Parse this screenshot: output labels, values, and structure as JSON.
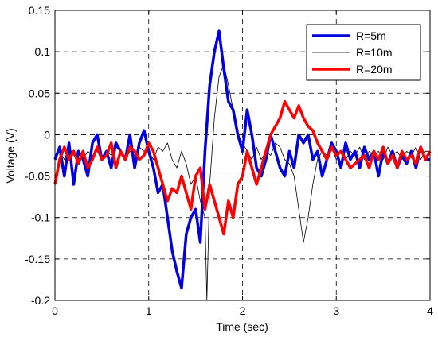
{
  "chart_data": {
    "type": "line",
    "xlabel": "Time (sec)",
    "ylabel": "Voltage (V)",
    "xlim": [
      0,
      4
    ],
    "ylim": [
      -0.2,
      0.15
    ],
    "x_ticks": [
      "0",
      "1",
      "2",
      "3",
      "4"
    ],
    "y_ticks": [
      "-0.2",
      "-0.15",
      "-0.1",
      "-0.05",
      "0",
      "0.05",
      "0.1",
      "0.15"
    ],
    "grid": true,
    "legend_position": "top-right",
    "series": [
      {
        "name": "R=5m",
        "color": "#0000e0",
        "x": [
          0,
          0.05,
          0.1,
          0.15,
          0.2,
          0.25,
          0.3,
          0.35,
          0.4,
          0.45,
          0.5,
          0.55,
          0.6,
          0.65,
          0.7,
          0.75,
          0.8,
          0.85,
          0.9,
          0.95,
          1.0,
          1.05,
          1.1,
          1.15,
          1.2,
          1.25,
          1.3,
          1.35,
          1.4,
          1.45,
          1.5,
          1.55,
          1.6,
          1.65,
          1.7,
          1.75,
          1.8,
          1.85,
          1.9,
          1.95,
          2.0,
          2.05,
          2.1,
          2.15,
          2.2,
          2.25,
          2.3,
          2.35,
          2.4,
          2.45,
          2.5,
          2.55,
          2.6,
          2.65,
          2.7,
          2.75,
          2.8,
          2.85,
          2.9,
          2.95,
          3.0,
          3.05,
          3.1,
          3.15,
          3.2,
          3.25,
          3.3,
          3.35,
          3.4,
          3.45,
          3.5,
          3.55,
          3.6,
          3.65,
          3.7,
          3.75,
          3.8,
          3.85,
          3.9,
          3.95,
          4.0
        ],
        "values": [
          -0.03,
          -0.015,
          -0.05,
          -0.01,
          -0.06,
          -0.02,
          -0.03,
          -0.05,
          -0.01,
          0.0,
          -0.03,
          -0.02,
          -0.04,
          -0.01,
          -0.02,
          -0.03,
          0.0,
          -0.04,
          -0.01,
          0.005,
          -0.02,
          -0.04,
          -0.07,
          -0.06,
          -0.1,
          -0.14,
          -0.165,
          -0.185,
          -0.12,
          -0.1,
          -0.09,
          -0.13,
          -0.02,
          0.06,
          0.1,
          0.125,
          0.08,
          0.04,
          0.03,
          0.0,
          -0.02,
          0.03,
          0.0,
          -0.04,
          -0.05,
          -0.03,
          0.0,
          -0.02,
          -0.04,
          -0.05,
          -0.02,
          -0.04,
          0.0,
          -0.01,
          0.0,
          -0.03,
          -0.02,
          -0.05,
          -0.03,
          -0.01,
          -0.02,
          -0.04,
          -0.01,
          -0.03,
          -0.02,
          -0.04,
          -0.015,
          -0.03,
          -0.02,
          -0.05,
          -0.02,
          -0.035,
          -0.02,
          -0.04,
          -0.025,
          -0.035,
          -0.02,
          -0.04,
          -0.015,
          -0.03,
          -0.03
        ]
      },
      {
        "name": "R=10m",
        "color": "#000000",
        "x": [
          0,
          0.05,
          0.1,
          0.15,
          0.2,
          0.25,
          0.3,
          0.35,
          0.4,
          0.45,
          0.5,
          0.55,
          0.6,
          0.65,
          0.7,
          0.75,
          0.8,
          0.85,
          0.9,
          0.95,
          1.0,
          1.05,
          1.1,
          1.15,
          1.2,
          1.25,
          1.3,
          1.35,
          1.4,
          1.45,
          1.5,
          1.55,
          1.6,
          1.62,
          1.65,
          1.7,
          1.75,
          1.8,
          1.85,
          1.9,
          1.95,
          2.0,
          2.05,
          2.1,
          2.15,
          2.2,
          2.25,
          2.3,
          2.35,
          2.4,
          2.45,
          2.5,
          2.55,
          2.6,
          2.65,
          2.7,
          2.75,
          2.8,
          2.85,
          2.9,
          2.95,
          3.0,
          3.05,
          3.1,
          3.15,
          3.2,
          3.25,
          3.3,
          3.35,
          3.4,
          3.45,
          3.5,
          3.55,
          3.6,
          3.65,
          3.7,
          3.75,
          3.8,
          3.85,
          3.9,
          3.95,
          4.0
        ],
        "values": [
          -0.03,
          -0.02,
          -0.03,
          -0.015,
          -0.025,
          -0.02,
          -0.03,
          -0.02,
          -0.025,
          -0.02,
          -0.03,
          -0.02,
          -0.025,
          -0.015,
          -0.02,
          -0.03,
          -0.02,
          -0.025,
          -0.015,
          -0.02,
          -0.02,
          -0.03,
          -0.015,
          -0.02,
          -0.01,
          -0.03,
          -0.04,
          -0.02,
          -0.035,
          -0.06,
          -0.05,
          -0.08,
          -0.1,
          -0.2,
          -0.06,
          0.02,
          0.07,
          0.085,
          0.06,
          0.03,
          0.0,
          -0.01,
          -0.02,
          -0.03,
          -0.015,
          -0.03,
          -0.02,
          -0.025,
          -0.01,
          -0.015,
          -0.03,
          -0.035,
          -0.05,
          -0.09,
          -0.13,
          -0.1,
          -0.06,
          -0.03,
          -0.02,
          -0.025,
          -0.015,
          -0.03,
          -0.02,
          -0.03,
          -0.02,
          -0.025,
          -0.015,
          -0.03,
          -0.02,
          -0.025,
          -0.02,
          -0.03,
          -0.015,
          -0.025,
          -0.02,
          -0.03,
          -0.02,
          -0.025,
          -0.015,
          -0.03,
          -0.02,
          -0.02
        ]
      },
      {
        "name": "R=20m",
        "color": "#ff0000",
        "x": [
          0,
          0.05,
          0.1,
          0.15,
          0.2,
          0.25,
          0.3,
          0.35,
          0.4,
          0.45,
          0.5,
          0.55,
          0.6,
          0.65,
          0.7,
          0.75,
          0.8,
          0.85,
          0.9,
          0.95,
          1.0,
          1.05,
          1.1,
          1.15,
          1.2,
          1.25,
          1.3,
          1.35,
          1.4,
          1.45,
          1.5,
          1.55,
          1.6,
          1.65,
          1.7,
          1.75,
          1.8,
          1.85,
          1.9,
          1.95,
          2.0,
          2.05,
          2.1,
          2.15,
          2.2,
          2.25,
          2.3,
          2.35,
          2.4,
          2.45,
          2.5,
          2.55,
          2.6,
          2.65,
          2.7,
          2.75,
          2.8,
          2.85,
          2.9,
          2.95,
          3.0,
          3.05,
          3.1,
          3.15,
          3.2,
          3.25,
          3.3,
          3.35,
          3.4,
          3.45,
          3.5,
          3.55,
          3.6,
          3.65,
          3.7,
          3.75,
          3.8,
          3.85,
          3.9,
          3.95,
          4.0
        ],
        "values": [
          -0.06,
          -0.03,
          -0.015,
          -0.03,
          -0.02,
          -0.035,
          -0.02,
          -0.04,
          -0.03,
          -0.015,
          -0.03,
          -0.025,
          -0.01,
          -0.04,
          -0.02,
          -0.03,
          -0.015,
          -0.02,
          -0.03,
          -0.025,
          -0.01,
          -0.02,
          -0.04,
          -0.06,
          -0.08,
          -0.065,
          -0.07,
          -0.05,
          -0.07,
          -0.09,
          -0.05,
          -0.04,
          -0.09,
          -0.06,
          -0.08,
          -0.1,
          -0.12,
          -0.08,
          -0.1,
          -0.06,
          -0.05,
          -0.02,
          -0.04,
          -0.06,
          -0.04,
          -0.02,
          0.0,
          0.01,
          0.02,
          0.04,
          0.03,
          0.02,
          0.035,
          0.02,
          0.01,
          0.005,
          -0.01,
          -0.02,
          -0.03,
          -0.015,
          -0.025,
          -0.02,
          -0.03,
          -0.04,
          -0.035,
          -0.03,
          -0.025,
          -0.04,
          -0.02,
          -0.03,
          -0.015,
          -0.035,
          -0.025,
          -0.04,
          -0.02,
          -0.03,
          -0.025,
          -0.035,
          -0.015,
          -0.03,
          -0.02
        ]
      }
    ]
  }
}
